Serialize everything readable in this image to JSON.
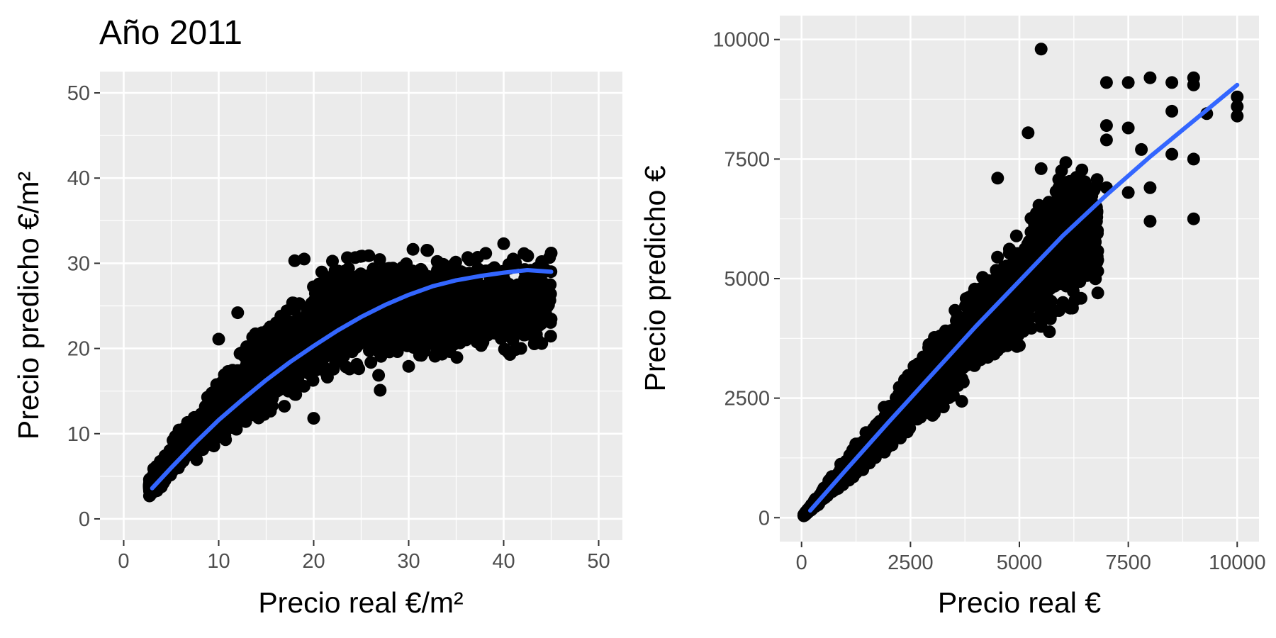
{
  "figure": {
    "title": "Año 2011",
    "colors": {
      "panel_background": "#ebebeb",
      "grid": "#ffffff",
      "points": "#000000",
      "fit_line": "#3366ff",
      "tick_text": "#4d4d4d"
    }
  },
  "chart_data": [
    {
      "type": "scatter",
      "title": "Año 2011",
      "xlabel": "Precio real  €/m²",
      "ylabel": "Precio predicho €/m²",
      "xlim": [
        -2.5,
        52.5
      ],
      "ylim": [
        -2.5,
        52.5
      ],
      "xticks": [
        0,
        10,
        20,
        30,
        40,
        50
      ],
      "xtick_labels": [
        "0",
        "10",
        "20",
        "30",
        "40",
        "50"
      ],
      "yticks": [
        0,
        10,
        20,
        30,
        40,
        50
      ],
      "ytick_labels": [
        "0",
        "10",
        "20",
        "30",
        "40",
        "50"
      ],
      "grid": true,
      "point_cloud": {
        "x_range": [
          2.7,
          45
        ],
        "trend_coefficients": [
          0.05,
          1.3,
          -0.0162
        ],
        "lower_ratio": 0.7,
        "upper_ratio": 1.5,
        "max_y": 32.5,
        "count": 2600
      },
      "highlighted_points": [
        {
          "x": 45,
          "y": 31.2
        },
        {
          "x": 44,
          "y": 30.2
        },
        {
          "x": 43,
          "y": 26.3
        },
        {
          "x": 42,
          "y": 26.1
        },
        {
          "x": 41,
          "y": 30.5
        },
        {
          "x": 40,
          "y": 32.3
        },
        {
          "x": 37,
          "y": 24.8
        },
        {
          "x": 36,
          "y": 24.3
        },
        {
          "x": 32,
          "y": 31.5
        },
        {
          "x": 33,
          "y": 19.7
        },
        {
          "x": 30,
          "y": 17.9
        },
        {
          "x": 27,
          "y": 15.1
        },
        {
          "x": 19,
          "y": 30.5
        },
        {
          "x": 18,
          "y": 30.3
        },
        {
          "x": 20,
          "y": 11.8
        },
        {
          "x": 10,
          "y": 21.1
        },
        {
          "x": 12,
          "y": 24.2
        }
      ],
      "fit_line": {
        "x": [
          3,
          5,
          7.5,
          10,
          12.5,
          15,
          17.5,
          20,
          22.5,
          25,
          27.5,
          30,
          32.5,
          35,
          37.5,
          40,
          42.5,
          45
        ],
        "y": [
          3.6,
          6.0,
          8.9,
          11.6,
          14.0,
          16.3,
          18.4,
          20.3,
          22.1,
          23.7,
          25.1,
          26.3,
          27.3,
          28.0,
          28.5,
          28.9,
          29.2,
          29.0
        ]
      }
    },
    {
      "type": "scatter",
      "title": "",
      "xlabel": "Precio real  €",
      "ylabel": "Precio predicho €",
      "xlim": [
        -500,
        10500
      ],
      "ylim": [
        -500,
        10500
      ],
      "xticks": [
        0,
        2500,
        5000,
        7500,
        10000
      ],
      "xtick_labels": [
        "0",
        "2500",
        "5000",
        "7500",
        "10000"
      ],
      "yticks": [
        0,
        2500,
        5000,
        7500,
        10000
      ],
      "ytick_labels": [
        "0",
        "2500",
        "5000",
        "7500",
        "10000"
      ],
      "grid": true,
      "point_cloud": {
        "x_range": [
          50,
          6800
        ],
        "trend_coefficients": [
          0,
          0.9,
          0
        ],
        "lower_ratio": 0.72,
        "upper_ratio": 1.42,
        "max_y": 7800,
        "count": 2400
      },
      "highlighted_points": [
        {
          "x": 5500,
          "y": 9800
        },
        {
          "x": 7000,
          "y": 9100
        },
        {
          "x": 7500,
          "y": 9100
        },
        {
          "x": 8000,
          "y": 9200
        },
        {
          "x": 8500,
          "y": 9100
        },
        {
          "x": 9000,
          "y": 9200
        },
        {
          "x": 9000,
          "y": 9050
        },
        {
          "x": 10000,
          "y": 8800
        },
        {
          "x": 10000,
          "y": 8600
        },
        {
          "x": 10000,
          "y": 8400
        },
        {
          "x": 9000,
          "y": 6250
        },
        {
          "x": 8000,
          "y": 6200
        },
        {
          "x": 8000,
          "y": 6900
        },
        {
          "x": 8500,
          "y": 8500
        },
        {
          "x": 8500,
          "y": 7600
        },
        {
          "x": 9000,
          "y": 7500
        },
        {
          "x": 9300,
          "y": 8450
        },
        {
          "x": 7000,
          "y": 8200
        },
        {
          "x": 7000,
          "y": 7900
        },
        {
          "x": 7500,
          "y": 8150
        },
        {
          "x": 7800,
          "y": 7700
        },
        {
          "x": 7500,
          "y": 6800
        },
        {
          "x": 7000,
          "y": 6900
        },
        {
          "x": 6500,
          "y": 6200
        },
        {
          "x": 6000,
          "y": 6600
        },
        {
          "x": 6000,
          "y": 5000
        },
        {
          "x": 6500,
          "y": 5100
        },
        {
          "x": 6800,
          "y": 4700
        },
        {
          "x": 6000,
          "y": 4500
        },
        {
          "x": 5200,
          "y": 8050
        },
        {
          "x": 4500,
          "y": 7100
        },
        {
          "x": 5500,
          "y": 7300
        },
        {
          "x": 5500,
          "y": 4000
        },
        {
          "x": 5000,
          "y": 3600
        },
        {
          "x": 4500,
          "y": 3500
        },
        {
          "x": 3500,
          "y": 2800
        },
        {
          "x": 2500,
          "y": 2200
        },
        {
          "x": 1500,
          "y": 1200
        }
      ],
      "fit_line": {
        "x": [
          200,
          1000,
          2000,
          3000,
          4000,
          5000,
          6000,
          7000,
          8000,
          9000,
          10000
        ],
        "y": [
          150,
          980,
          2000,
          3000,
          4000,
          4950,
          5900,
          6750,
          7550,
          8300,
          9050
        ]
      }
    }
  ]
}
